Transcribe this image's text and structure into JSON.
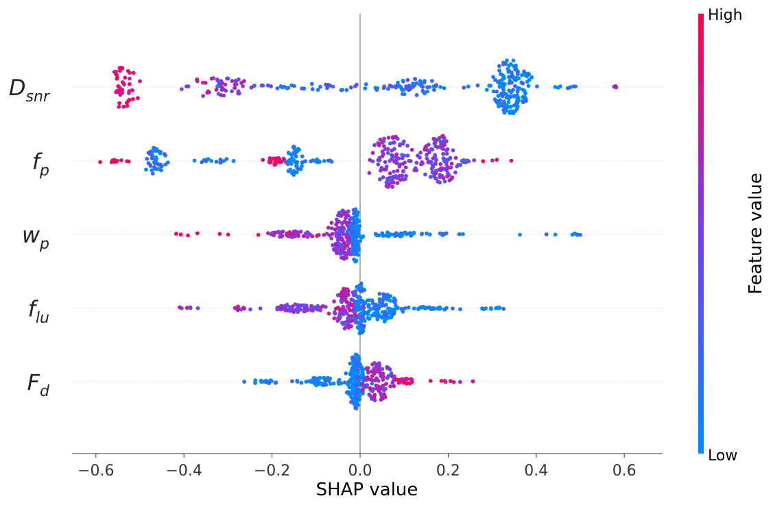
{
  "chart_data": {
    "type": "scatter",
    "subtype": "shap-beeswarm",
    "title": "",
    "xlabel": "SHAP value",
    "ylabel": "",
    "xlim": [
      -0.66,
      0.69
    ],
    "x_ticks": [
      -0.6,
      -0.4,
      -0.2,
      0.0,
      0.2,
      0.4,
      0.6
    ],
    "x_tick_labels": [
      "−0.6",
      "−0.4",
      "−0.2",
      "0.0",
      "0.2",
      "0.4",
      "0.6"
    ],
    "grid": false,
    "colorbar": {
      "title": "Feature value",
      "high_label": "High",
      "low_label": "Low",
      "high_color": "#ff0052",
      "mid_color": "#7a3cf0",
      "low_color": "#008bfb"
    },
    "features": [
      {
        "name": "D_snr",
        "label_main": "D",
        "label_sub": "snr",
        "seed": 11,
        "clusters": [
          {
            "center": -0.535,
            "spread": 0.025,
            "count": 45,
            "width": 0.85,
            "color_mean": 0.92
          },
          {
            "center": -0.32,
            "spread": 0.06,
            "count": 50,
            "width": 0.4,
            "color_mean": 0.62
          },
          {
            "center": -0.05,
            "spread": 0.17,
            "count": 50,
            "width": 0.12,
            "color_mean": 0.22
          },
          {
            "center": 0.12,
            "spread": 0.06,
            "count": 40,
            "width": 0.3,
            "color_mean": 0.18
          },
          {
            "center": 0.34,
            "spread": 0.035,
            "count": 150,
            "width": 1.0,
            "color_mean": 0.06
          },
          {
            "center": 0.45,
            "spread": 0.04,
            "count": 8,
            "width": 0.05,
            "color_mean": 0.02
          },
          {
            "center": 0.58,
            "spread": 0.015,
            "count": 4,
            "width": 0.05,
            "color_mean": 0.6
          }
        ]
      },
      {
        "name": "f_p",
        "label_main": "f",
        "label_sub": "p",
        "seed": 23,
        "clusters": [
          {
            "center": -0.565,
            "spread": 0.03,
            "count": 14,
            "width": 0.06,
            "color_mean": 0.97
          },
          {
            "center": -0.465,
            "spread": 0.022,
            "count": 40,
            "width": 0.5,
            "color_mean": 0.12
          },
          {
            "center": -0.32,
            "spread": 0.05,
            "count": 15,
            "width": 0.08,
            "color_mean": 0.1
          },
          {
            "center": -0.19,
            "spread": 0.02,
            "count": 25,
            "width": 0.15,
            "color_mean": 0.92
          },
          {
            "center": -0.15,
            "spread": 0.015,
            "count": 45,
            "width": 0.55,
            "color_mean": 0.04
          },
          {
            "center": -0.09,
            "spread": 0.025,
            "count": 12,
            "width": 0.06,
            "color_mean": 0.05
          },
          {
            "center": 0.07,
            "spread": 0.04,
            "count": 110,
            "width": 1.0,
            "color_mean": 0.5
          },
          {
            "center": 0.18,
            "spread": 0.03,
            "count": 110,
            "width": 1.0,
            "color_mean": 0.55
          },
          {
            "center": 0.24,
            "spread": 0.02,
            "count": 8,
            "width": 0.05,
            "color_mean": 0.35
          },
          {
            "center": 0.32,
            "spread": 0.03,
            "count": 4,
            "width": 0.05,
            "color_mean": 0.9
          }
        ]
      },
      {
        "name": "w_p",
        "label_main": "w",
        "label_sub": "p",
        "seed": 37,
        "clusters": [
          {
            "center": -0.39,
            "spread": 0.03,
            "count": 4,
            "width": 0.05,
            "color_mean": 0.96
          },
          {
            "center": -0.3,
            "spread": 0.015,
            "count": 2,
            "width": 0.05,
            "color_mean": 0.97
          },
          {
            "center": -0.15,
            "spread": 0.05,
            "count": 50,
            "width": 0.12,
            "color_mean": 0.65
          },
          {
            "center": -0.035,
            "spread": 0.025,
            "count": 150,
            "width": 0.9,
            "color_mean": 0.55
          },
          {
            "center": -0.01,
            "spread": 0.01,
            "count": 80,
            "width": 1.0,
            "color_mean": 0.08
          },
          {
            "center": 0.09,
            "spread": 0.06,
            "count": 40,
            "width": 0.08,
            "color_mean": 0.03
          },
          {
            "center": 0.2,
            "spread": 0.03,
            "count": 8,
            "width": 0.05,
            "color_mean": 0.03
          },
          {
            "center": 0.45,
            "spread": 0.09,
            "count": 9,
            "width": 0.03,
            "color_mean": 0.03
          }
        ]
      },
      {
        "name": "f_lu",
        "label_main": "f",
        "label_sub": "lu",
        "seed": 51,
        "clusters": [
          {
            "center": -0.4,
            "spread": 0.03,
            "count": 6,
            "width": 0.05,
            "color_mean": 0.6
          },
          {
            "center": -0.27,
            "spread": 0.025,
            "count": 12,
            "width": 0.08,
            "color_mean": 0.65
          },
          {
            "center": -0.14,
            "spread": 0.05,
            "count": 60,
            "width": 0.15,
            "color_mean": 0.55
          },
          {
            "center": -0.03,
            "spread": 0.025,
            "count": 120,
            "width": 0.75,
            "color_mean": 0.6
          },
          {
            "center": 0.0,
            "spread": 0.012,
            "count": 60,
            "width": 1.0,
            "color_mean": 0.1
          },
          {
            "center": 0.05,
            "spread": 0.035,
            "count": 100,
            "width": 0.55,
            "color_mean": 0.04
          },
          {
            "center": 0.17,
            "spread": 0.06,
            "count": 30,
            "width": 0.06,
            "color_mean": 0.03
          },
          {
            "center": 0.3,
            "spread": 0.04,
            "count": 12,
            "width": 0.04,
            "color_mean": 0.03
          }
        ]
      },
      {
        "name": "F_d",
        "label_main": "F",
        "label_sub": "d",
        "seed": 67,
        "clusters": [
          {
            "center": -0.22,
            "spread": 0.04,
            "count": 15,
            "width": 0.06,
            "color_mean": 0.03
          },
          {
            "center": -0.09,
            "spread": 0.04,
            "count": 50,
            "width": 0.15,
            "color_mean": 0.05
          },
          {
            "center": -0.01,
            "spread": 0.015,
            "count": 160,
            "width": 1.0,
            "color_mean": 0.08
          },
          {
            "center": 0.04,
            "spread": 0.03,
            "count": 90,
            "width": 0.7,
            "color_mean": 0.62
          },
          {
            "center": 0.1,
            "spread": 0.03,
            "count": 25,
            "width": 0.12,
            "color_mean": 0.78
          },
          {
            "center": 0.2,
            "spread": 0.04,
            "count": 8,
            "width": 0.05,
            "color_mean": 0.85
          }
        ]
      }
    ]
  }
}
